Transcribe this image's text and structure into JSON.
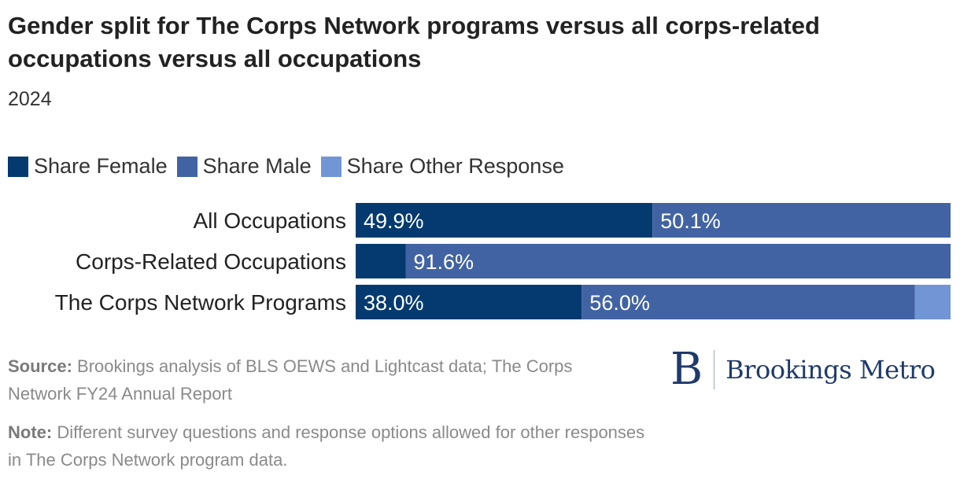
{
  "title": "Gender split for The Corps Network programs versus all corps-related occupations versus all occupations",
  "subtitle": "2024",
  "source_label": "Source:",
  "source_text": "Brookings analysis of BLS OEWS and Lightcast data; The Corps Network FY24 Annual Report",
  "note_label": "Note:",
  "note_text": "Different survey questions and response options allowed for other responses in The Corps Network program data.",
  "logo": {
    "mark": "B",
    "text": "Brookings Metro"
  },
  "colors": {
    "female": "#053a70",
    "male": "#4263a3",
    "other": "#7295d6"
  },
  "chart_data": {
    "type": "bar",
    "orientation": "horizontal",
    "stacked": true,
    "categories": [
      "All Occupations",
      "Corps-Related Occupations",
      "The Corps Network Programs"
    ],
    "series": [
      {
        "name": "Share Female",
        "values": [
          49.9,
          8.4,
          38.0
        ],
        "labels": [
          "49.9%",
          "",
          "38.0%"
        ]
      },
      {
        "name": "Share Male",
        "values": [
          50.1,
          91.6,
          56.0
        ],
        "labels": [
          "50.1%",
          "91.6%",
          "56.0%"
        ]
      },
      {
        "name": "Share Other Response",
        "values": [
          0,
          0,
          6.0
        ],
        "labels": [
          "",
          "",
          ""
        ]
      }
    ],
    "xlim": [
      0,
      100
    ],
    "legend_position": "top-left",
    "grid": false
  }
}
